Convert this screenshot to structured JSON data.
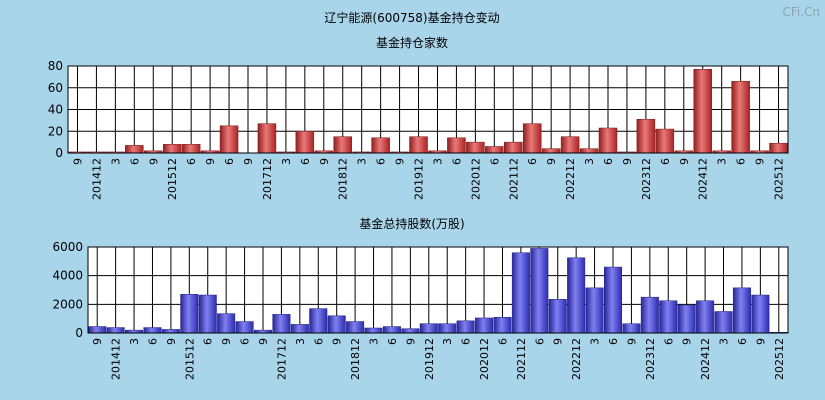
{
  "page": {
    "title": "辽宁能源(600758)基金持仓变动",
    "watermark": "CFi.Cn"
  },
  "colors": {
    "background": "#a9d5ea",
    "plot_background": "#ffffff",
    "grid": "#000000",
    "bar_red": "#e03030",
    "bar_blue": "#3b3bea"
  },
  "chart_data": [
    {
      "type": "bar",
      "title": "基金持仓家数",
      "categories": [
        "9",
        "201412",
        "3",
        "6",
        "9",
        "201512",
        "6",
        "9",
        "6",
        "9",
        "201712",
        "3",
        "6",
        "9",
        "201812",
        "3",
        "6",
        "9",
        "201912",
        "3",
        "6",
        "202012",
        "6",
        "202112",
        "6",
        "9",
        "202212",
        "3",
        "6",
        "9",
        "202312",
        "6",
        "9",
        "202412",
        "3",
        "6",
        "9",
        "202512"
      ],
      "values": [
        1,
        1,
        1,
        7,
        2,
        8,
        8,
        2,
        25,
        0,
        27,
        1,
        20,
        2,
        15,
        1,
        14,
        1,
        15,
        2,
        14,
        10,
        6,
        10,
        27,
        4,
        15,
        4,
        23,
        1,
        31,
        22,
        2,
        77,
        2,
        66,
        2,
        9
      ],
      "ylim": [
        0,
        80
      ],
      "yticks": [
        0,
        20,
        40,
        60,
        80
      ],
      "color": "#e03030",
      "grid": true
    },
    {
      "type": "bar",
      "title": "基金总持股数(万股)",
      "categories": [
        "9",
        "201412",
        "3",
        "6",
        "9",
        "201512",
        "6",
        "9",
        "6",
        "9",
        "201712",
        "3",
        "6",
        "9",
        "201812",
        "3",
        "6",
        "9",
        "201912",
        "3",
        "6",
        "202012",
        "6",
        "202112",
        "6",
        "9",
        "202212",
        "3",
        "6",
        "9",
        "202312",
        "6",
        "9",
        "202412",
        "3",
        "6",
        "9",
        "202512"
      ],
      "values": [
        450,
        380,
        200,
        380,
        250,
        2700,
        2650,
        1350,
        800,
        200,
        1300,
        600,
        1700,
        1200,
        800,
        350,
        450,
        300,
        650,
        650,
        850,
        1050,
        1100,
        5600,
        5900,
        2350,
        5250,
        3150,
        4600,
        650,
        2500,
        2250,
        1950,
        2250,
        1500,
        3150,
        2650,
        50
      ],
      "ylim": [
        0,
        6000
      ],
      "yticks": [
        0,
        2000,
        4000,
        6000
      ],
      "color": "#3b3bea",
      "grid": true
    }
  ]
}
